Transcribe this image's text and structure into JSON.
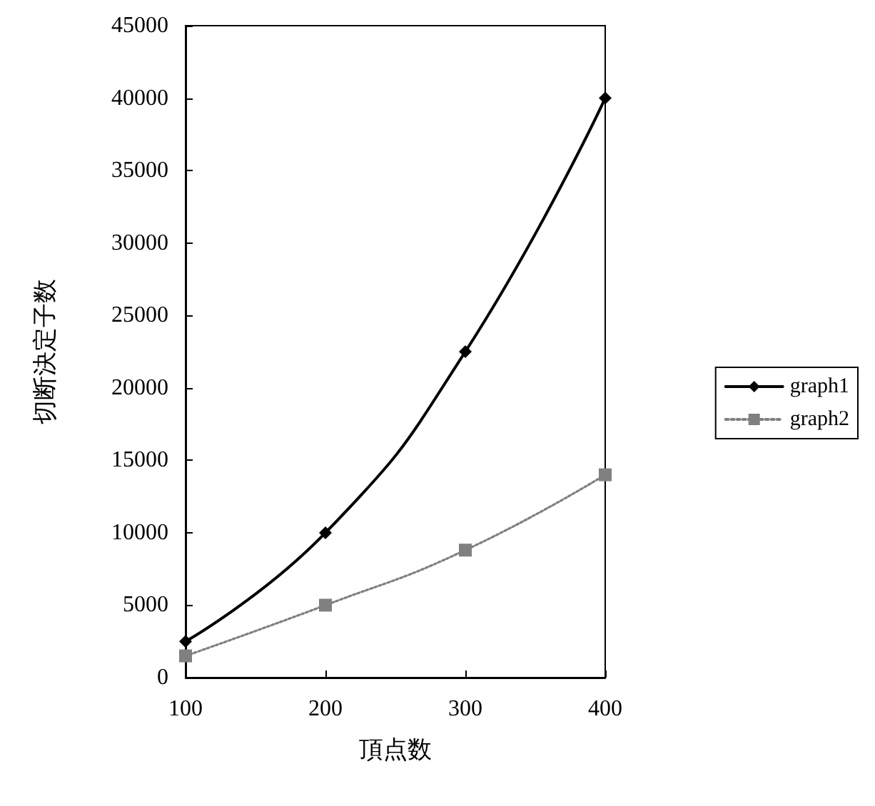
{
  "chart_data": {
    "type": "line",
    "xlabel": "頂点数",
    "ylabel": "切断決定子数",
    "x": [
      100,
      200,
      300,
      400
    ],
    "series": [
      {
        "name": "graph1",
        "color": "#000000",
        "values": [
          2500,
          10000,
          22500,
          40000
        ],
        "marker": "diamond",
        "line_style": "solid"
      },
      {
        "name": "graph2",
        "color": "#808080",
        "values": [
          1500,
          5000,
          8800,
          14000
        ],
        "marker": "square",
        "line_style": "dotted"
      }
    ],
    "xlim": [
      100,
      400
    ],
    "xticks": [
      100,
      200,
      300,
      400
    ],
    "ylim": [
      0,
      45000
    ],
    "yticks": [
      0,
      5000,
      10000,
      15000,
      20000,
      25000,
      30000,
      35000,
      40000,
      45000
    ],
    "grid": false,
    "legend": "right"
  }
}
